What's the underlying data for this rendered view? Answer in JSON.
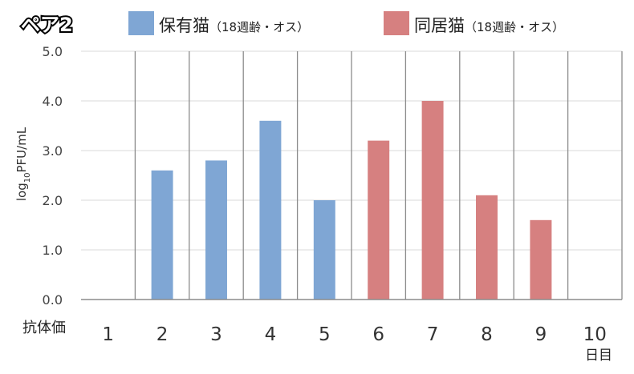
{
  "chart_data": {
    "type": "bar",
    "title": "ペア2",
    "ylabel_main": "log",
    "ylabel_sub": "10",
    "ylabel_tail": "PFU/mL",
    "x_row_label": "抗体価",
    "x_unit": "日目",
    "ylim": [
      0,
      5
    ],
    "yticks": [
      "0.0",
      "1.0",
      "2.0",
      "3.0",
      "4.0",
      "5.0"
    ],
    "categories": [
      "1",
      "2",
      "3",
      "4",
      "5",
      "6",
      "7",
      "8",
      "9",
      "10"
    ],
    "legend_position": "top",
    "series": [
      {
        "name": "保有猫",
        "name_note": "（18週齢・オス）",
        "color": "#7fa6d4",
        "values": [
          0,
          2.6,
          2.8,
          3.6,
          2.0,
          null,
          null,
          null,
          null,
          null
        ]
      },
      {
        "name": "同居猫",
        "name_note": "（18週齢・オス）",
        "color": "#d68080",
        "values": [
          null,
          null,
          null,
          null,
          null,
          3.2,
          4.0,
          2.1,
          1.6,
          0
        ]
      }
    ],
    "grid": true
  }
}
